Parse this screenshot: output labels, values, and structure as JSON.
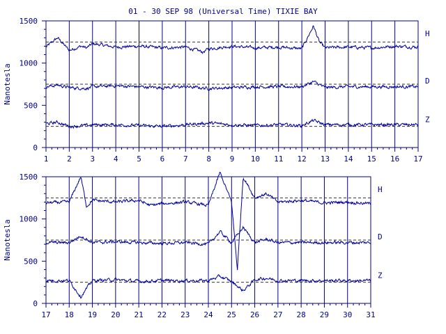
{
  "title": "01 - 30 SEP 98 (Universal Time) TIXIE BAY",
  "ylabel": "Nanotesla",
  "colors": {
    "ink": "#00008b",
    "trace": "#0000a0",
    "bg": "#ffffff"
  },
  "chart_data": [
    {
      "type": "line",
      "panel": "top",
      "ylabel": "Nanotesla",
      "ylim": [
        0,
        1500
      ],
      "yticks": [
        0,
        500,
        1000,
        1500
      ],
      "xlim": [
        1,
        17
      ],
      "xticks": [
        "1",
        "2",
        "3",
        "4",
        "5",
        "6",
        "7",
        "8",
        "9",
        "10",
        "11",
        "12",
        "13",
        "14",
        "15",
        "16",
        "17"
      ],
      "grid": "vertical lines at each day",
      "reference_lines": [
        1250,
        750,
        250
      ],
      "series": [
        {
          "name": "H",
          "baseline": 1200,
          "x": [
            1,
            1.5,
            2,
            2.5,
            2.75,
            3,
            4,
            5,
            6,
            7,
            7.75,
            8,
            9,
            10,
            11,
            12,
            12.5,
            12.75,
            13,
            14,
            15,
            16,
            17
          ],
          "values": [
            1190,
            1300,
            1150,
            1200,
            1180,
            1230,
            1190,
            1200,
            1180,
            1190,
            1130,
            1170,
            1200,
            1180,
            1190,
            1170,
            1440,
            1250,
            1180,
            1190,
            1180,
            1200,
            1190
          ]
        },
        {
          "name": "D",
          "baseline": 720,
          "x": [
            1,
            1.5,
            2,
            2.75,
            3,
            4,
            5,
            6,
            7,
            8,
            9,
            10,
            11,
            12,
            12.5,
            13,
            14,
            15,
            16,
            17
          ],
          "values": [
            720,
            740,
            710,
            700,
            720,
            730,
            720,
            710,
            720,
            700,
            710,
            720,
            720,
            720,
            780,
            710,
            720,
            720,
            720,
            720
          ]
        },
        {
          "name": "Z",
          "baseline": 270,
          "x": [
            1,
            1.5,
            2,
            2.75,
            3,
            4,
            5,
            6,
            7,
            8,
            9,
            10,
            11,
            12,
            12.5,
            13,
            14,
            15,
            16,
            17
          ],
          "values": [
            280,
            300,
            250,
            260,
            270,
            270,
            260,
            250,
            270,
            290,
            270,
            260,
            270,
            260,
            320,
            270,
            270,
            270,
            270,
            270
          ]
        }
      ]
    },
    {
      "type": "line",
      "panel": "bottom",
      "ylabel": "Nanotesla",
      "ylim": [
        0,
        1500
      ],
      "yticks": [
        0,
        500,
        1000,
        1500
      ],
      "xlim": [
        17,
        31
      ],
      "xticks": [
        "17",
        "18",
        "19",
        "20",
        "21",
        "22",
        "23",
        "24",
        "25",
        "26",
        "27",
        "28",
        "29",
        "30",
        "31"
      ],
      "grid": "vertical lines at each day",
      "reference_lines": [
        1250,
        750,
        250
      ],
      "series": [
        {
          "name": "H",
          "baseline": 1200,
          "x": [
            17,
            18,
            18.5,
            18.75,
            19,
            20,
            21,
            21.5,
            22,
            23,
            24,
            24.5,
            25,
            25.25,
            25.5,
            26,
            26.5,
            27,
            28,
            29,
            30,
            31
          ],
          "values": [
            1190,
            1200,
            1500,
            1150,
            1220,
            1200,
            1220,
            1160,
            1180,
            1200,
            1160,
            1550,
            1200,
            400,
            1500,
            1250,
            1300,
            1200,
            1220,
            1190,
            1200,
            1180
          ]
        },
        {
          "name": "D",
          "baseline": 720,
          "x": [
            17,
            18,
            18.5,
            19,
            20,
            21,
            22,
            23,
            24,
            24.5,
            25,
            25.5,
            26,
            26.5,
            27,
            28,
            29,
            30,
            31
          ],
          "values": [
            720,
            720,
            800,
            720,
            730,
            720,
            710,
            720,
            700,
            850,
            720,
            900,
            720,
            760,
            720,
            720,
            720,
            720,
            720
          ]
        },
        {
          "name": "Z",
          "baseline": 270,
          "x": [
            17,
            18,
            18.5,
            19,
            20,
            21,
            22,
            23,
            24,
            24.5,
            25,
            25.5,
            26,
            26.5,
            27,
            28,
            29,
            30,
            31
          ],
          "values": [
            270,
            270,
            80,
            270,
            280,
            260,
            270,
            270,
            270,
            320,
            260,
            150,
            280,
            300,
            270,
            270,
            270,
            270,
            270
          ]
        }
      ]
    }
  ]
}
